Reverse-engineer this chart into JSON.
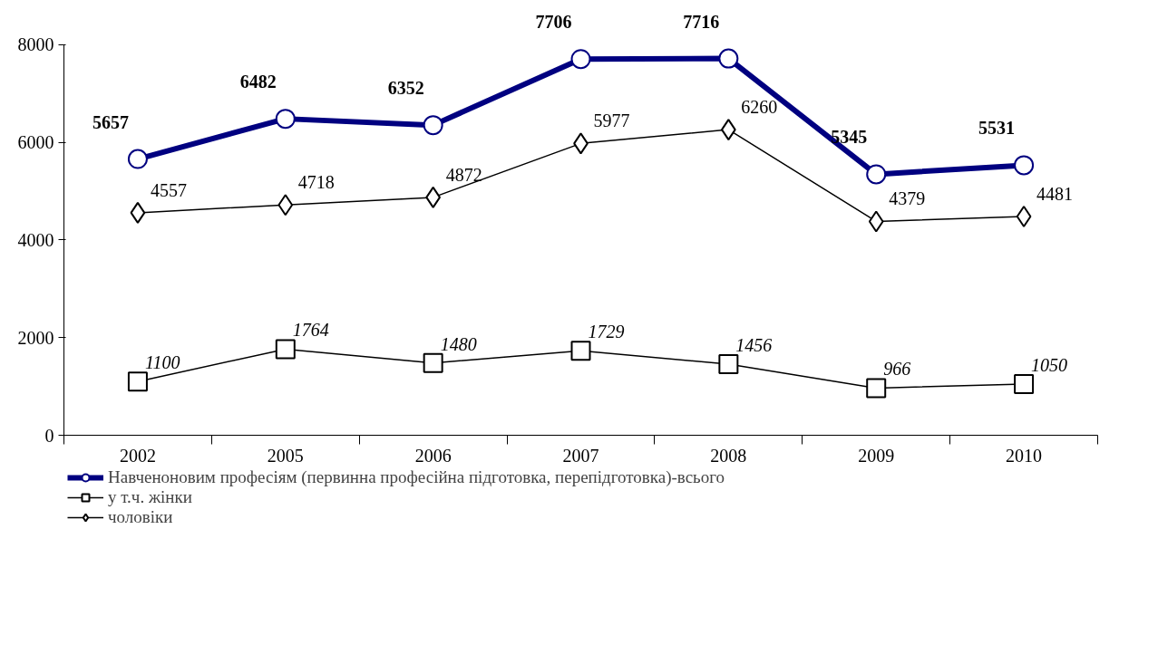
{
  "chart_data": {
    "type": "line",
    "categories": [
      "2002",
      "2005",
      "2006",
      "2007",
      "2008",
      "2009",
      "2010"
    ],
    "series": [
      {
        "name": "Навченоновим професіям (первинна професійна підготовка, перепідготовка)-всього",
        "color": "#000080",
        "marker": "circle",
        "values": [
          5657,
          6482,
          6352,
          7706,
          7716,
          5345,
          5531
        ]
      },
      {
        "name": "у т.ч. жінки",
        "color": "#000000",
        "marker": "square",
        "values": [
          1100,
          1764,
          1480,
          1729,
          1456,
          966,
          1050
        ]
      },
      {
        "name": "чоловіки",
        "color": "#000000",
        "marker": "diamond",
        "values": [
          4557,
          4718,
          4872,
          5977,
          6260,
          4379,
          4481
        ]
      }
    ],
    "ylim": [
      0,
      8000
    ],
    "yticks": [
      0,
      2000,
      4000,
      6000,
      8000
    ],
    "grid": false,
    "legend": "bottom",
    "data_labels": true,
    "line_style": "solid"
  }
}
